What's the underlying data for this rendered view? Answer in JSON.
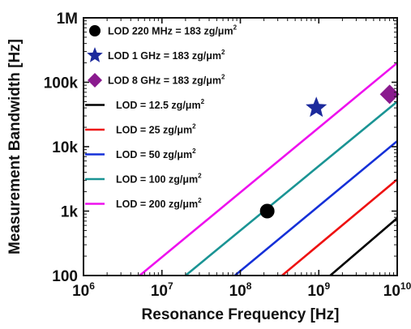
{
  "chart_data": {
    "type": "line",
    "xlabel": "Resonance Frequency [Hz]",
    "ylabel": "Measurement Bandwidth [Hz]",
    "xscale": "log",
    "yscale": "log",
    "xlim": [
      1000000,
      10000000000
    ],
    "ylim": [
      100,
      1000000
    ],
    "x_ticks": [
      {
        "value": 1000000,
        "base": "10",
        "exp": "6"
      },
      {
        "value": 10000000,
        "base": "10",
        "exp": "7"
      },
      {
        "value": 100000000,
        "base": "10",
        "exp": "8"
      },
      {
        "value": 1000000000,
        "base": "10",
        "exp": "9"
      },
      {
        "value": 10000000000,
        "base": "10",
        "exp": "10"
      }
    ],
    "y_ticks": [
      {
        "value": 100,
        "label": "100"
      },
      {
        "value": 1000,
        "label": "1k"
      },
      {
        "value": 10000,
        "label": "10k"
      },
      {
        "value": 100000,
        "label": "100k"
      },
      {
        "value": 1000000,
        "label": "1M"
      }
    ],
    "legend_position": "top-left",
    "points": [
      {
        "name_main": "LOD 220 MHz = 183 zg/μm",
        "sup": "2",
        "marker": "circle",
        "color": "#000000",
        "x": 220000000,
        "y": 1000
      },
      {
        "name_main": "LOD 1 GHz = 183 zg/μm",
        "sup": "2",
        "marker": "star",
        "color": "#1c2a9c",
        "x": 930000000,
        "y": 40000
      },
      {
        "name_main": "LOD 8 GHz = 183 zg/μm",
        "sup": "2",
        "marker": "diamond",
        "color": "#8a1a8e",
        "x": 8000000000,
        "y": 65000
      }
    ],
    "series": [
      {
        "name_main": "LOD = 12.5 zg/μm",
        "sup": "2",
        "color": "#000000",
        "x": [
          1400000000,
          10000000000
        ],
        "y": [
          100,
          780
        ]
      },
      {
        "name_main": "LOD = 25 zg/μm",
        "sup": "2",
        "color": "#ee1111",
        "x": [
          340000000,
          10000000000
        ],
        "y": [
          100,
          3100
        ]
      },
      {
        "name_main": "LOD = 50 zg/μm",
        "sup": "2",
        "color": "#1530d8",
        "x": [
          85000000,
          10000000000
        ],
        "y": [
          100,
          12200
        ]
      },
      {
        "name_main": "LOD = 100 zg/μm",
        "sup": "2",
        "color": "#1a9494",
        "x": [
          20000000,
          10000000000
        ],
        "y": [
          100,
          50000
        ]
      },
      {
        "name_main": "LOD = 200 zg/μm",
        "sup": "2",
        "color": "#ee11ee",
        "x": [
          5200000,
          10000000000
        ],
        "y": [
          100,
          200000
        ]
      }
    ]
  }
}
